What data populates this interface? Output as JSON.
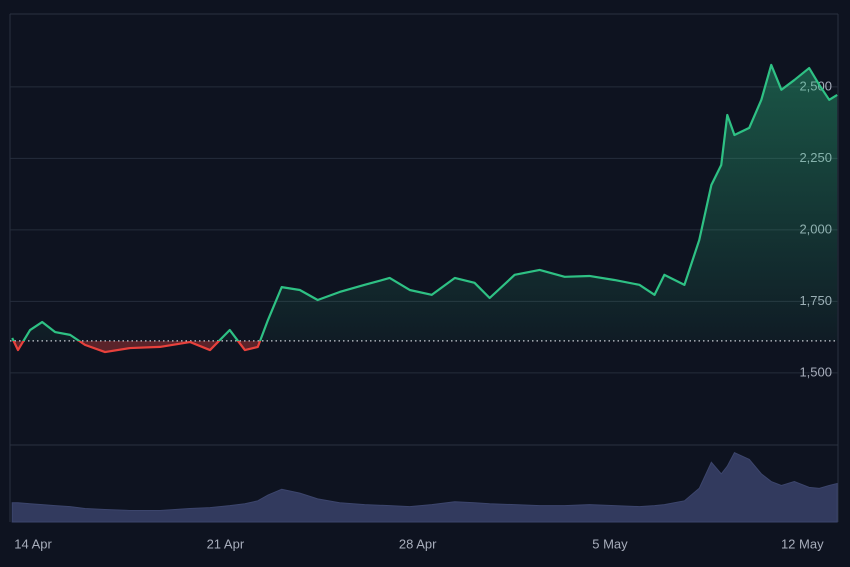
{
  "chart_data": {
    "type": "line",
    "x": [
      -0.76,
      -0.55,
      -0.11,
      0.33,
      0.8,
      1.35,
      1.89,
      2.62,
      3.53,
      4.62,
      5.71,
      6.44,
      7.16,
      7.71,
      8.18,
      8.55,
      9.05,
      9.71,
      10.36,
      11.16,
      12.07,
      12.98,
      13.71,
      14.51,
      15.35,
      16.07,
      16.62,
      17.53,
      18.44,
      19.35,
      20.25,
      21.16,
      22.07,
      22.62,
      22.98,
      23.71,
      24.25,
      24.69,
      25.05,
      25.27,
      25.53,
      26.07,
      26.51,
      26.87,
      27.24,
      27.71,
      28.25,
      28.62,
      28.98,
      29.27
    ],
    "values": [
      1622,
      1580,
      1650,
      1678,
      1643,
      1633,
      1598,
      1573,
      1587,
      1591,
      1608,
      1580,
      1650,
      1580,
      1591,
      1685,
      1800,
      1790,
      1755,
      1783,
      1808,
      1832,
      1790,
      1773,
      1832,
      1815,
      1762,
      1843,
      1860,
      1836,
      1839,
      1825,
      1808,
      1773,
      1843,
      1808,
      1965,
      2157,
      2227,
      2402,
      2332,
      2357,
      2455,
      2577,
      2490,
      2524,
      2566,
      2507,
      2455,
      2472
    ],
    "volume": [
      20,
      20,
      19,
      18,
      17,
      16,
      14,
      13,
      12,
      12,
      14,
      15,
      17,
      19,
      22,
      28,
      34,
      30,
      24,
      20,
      18,
      17,
      16,
      18,
      21,
      20,
      19,
      18,
      17,
      17,
      18,
      17,
      16,
      17,
      18,
      22,
      35,
      62,
      50,
      58,
      72,
      65,
      50,
      42,
      38,
      42,
      36,
      35,
      38,
      40
    ],
    "vlim": [
      0,
      80
    ],
    "baseline": 1612,
    "up_color": "#2ec184",
    "down_color": "#e8413c",
    "volume_color": "#323a5e",
    "xlim": [
      -0.84,
      29.3
    ],
    "xticks": [
      {
        "value": 0,
        "label": "14 Apr"
      },
      {
        "value": 7,
        "label": "21 Apr"
      },
      {
        "value": 14,
        "label": "28 Apr"
      },
      {
        "value": 21,
        "label": "5 May"
      },
      {
        "value": 28,
        "label": "12 May"
      }
    ],
    "ylim": [
      1248,
      2755
    ],
    "yticks": [
      {
        "value": 1500,
        "label": "1,500"
      },
      {
        "value": 1750,
        "label": "1,750"
      },
      {
        "value": 2000,
        "label": "2,000"
      },
      {
        "value": 2250,
        "label": "2,250"
      },
      {
        "value": 2500,
        "label": "2,500"
      }
    ],
    "grid": true
  }
}
